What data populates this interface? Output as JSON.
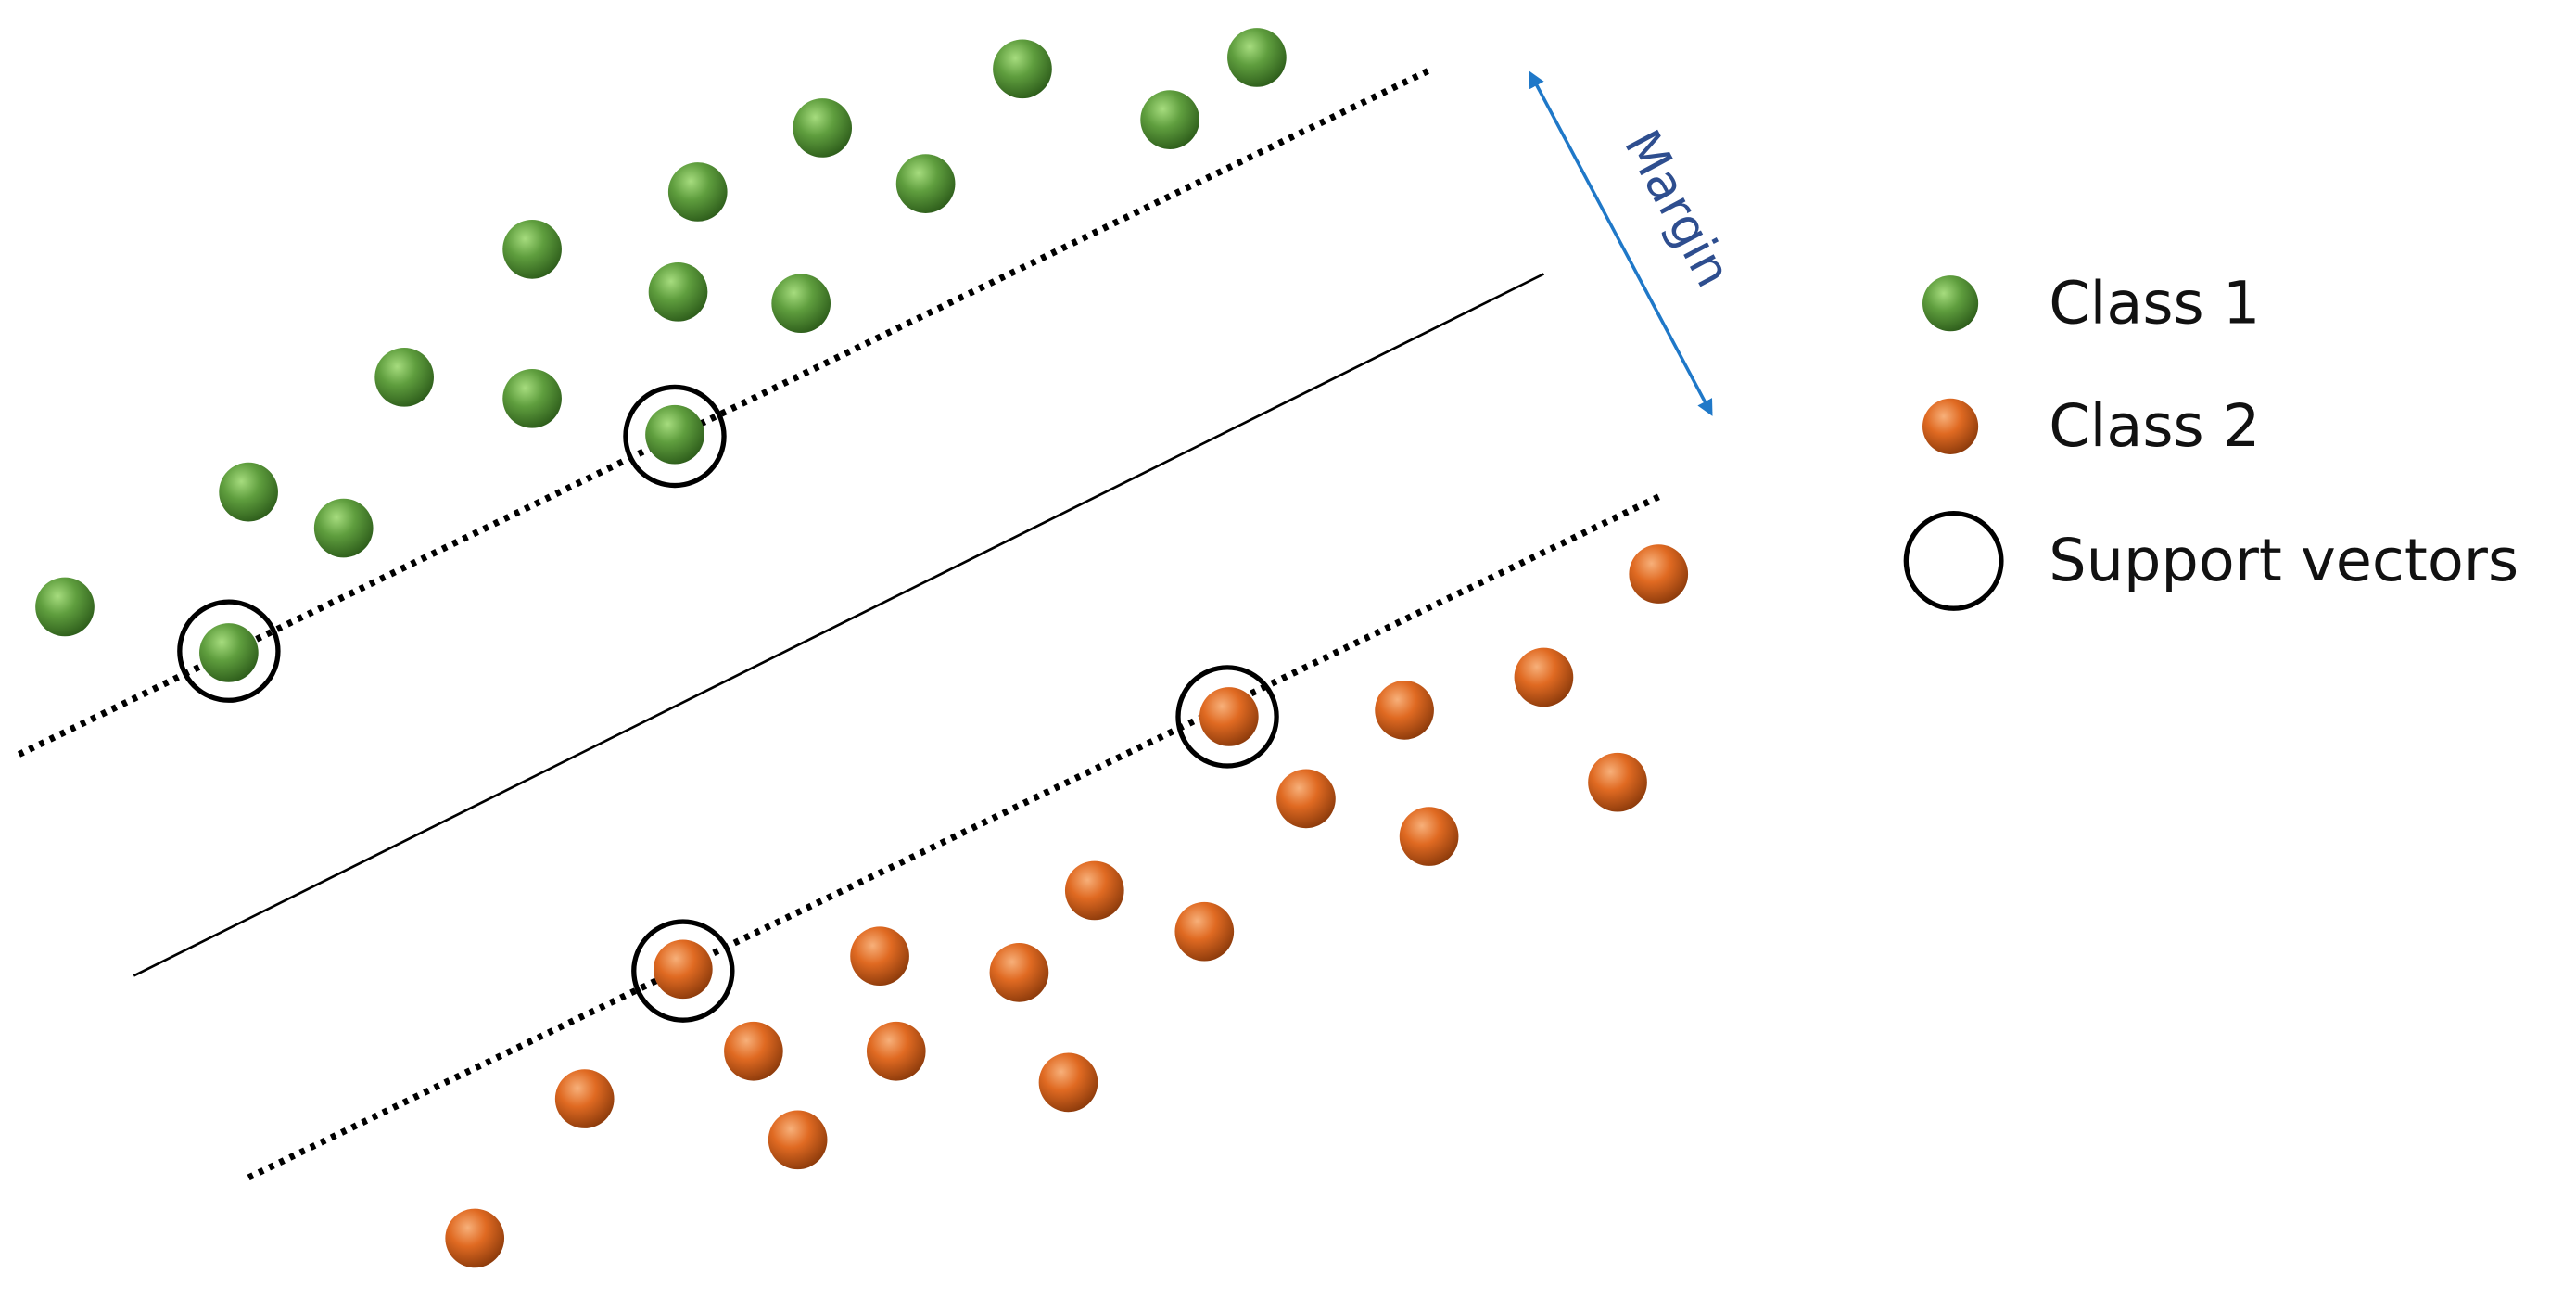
{
  "annotation": {
    "margin": "Margin"
  },
  "legend": {
    "items": [
      {
        "label": "Class 1"
      },
      {
        "label": "Class 2"
      },
      {
        "label": "Support vectors"
      }
    ]
  }
}
